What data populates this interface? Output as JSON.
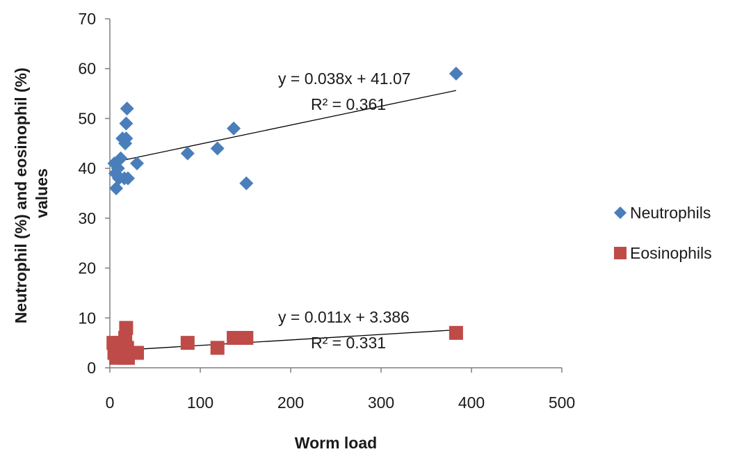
{
  "chart_data": {
    "type": "scatter",
    "title": "",
    "xlabel": "Worm load",
    "ylabel": "Neutrophil (%) and eosinophil (%) values",
    "xlim": [
      0,
      500
    ],
    "ylim": [
      0,
      70
    ],
    "xticks": [
      0,
      100,
      200,
      300,
      400,
      500
    ],
    "yticks": [
      0,
      10,
      20,
      30,
      40,
      50,
      60,
      70
    ],
    "grid": false,
    "legend_position": "right",
    "series": [
      {
        "name": "Neutrophils",
        "marker": "diamond",
        "color": "#4a7ebb",
        "points": [
          [
            5,
            41
          ],
          [
            6,
            39
          ],
          [
            7,
            36
          ],
          [
            9,
            40
          ],
          [
            10,
            38
          ],
          [
            12,
            42
          ],
          [
            14,
            46
          ],
          [
            16,
            38
          ],
          [
            17,
            45
          ],
          [
            18,
            49
          ],
          [
            18,
            46
          ],
          [
            19,
            52
          ],
          [
            20,
            38
          ],
          [
            30,
            41
          ],
          [
            86,
            43
          ],
          [
            119,
            44
          ],
          [
            137,
            48
          ],
          [
            151,
            37
          ],
          [
            383,
            59
          ]
        ],
        "trendline": {
          "slope": 0.038,
          "intercept": 41.07,
          "x_range": [
            5,
            383
          ],
          "equation": "y = 0.038x + 41.07",
          "r2": "R² = 0.361"
        }
      },
      {
        "name": "Eosinophils",
        "marker": "square",
        "color": "#be4b48",
        "points": [
          [
            4,
            5
          ],
          [
            5,
            3
          ],
          [
            6,
            4
          ],
          [
            7,
            2
          ],
          [
            9,
            3
          ],
          [
            10,
            5
          ],
          [
            12,
            4
          ],
          [
            14,
            3
          ],
          [
            16,
            2
          ],
          [
            17,
            6
          ],
          [
            18,
            8
          ],
          [
            19,
            4
          ],
          [
            20,
            2
          ],
          [
            30,
            3
          ],
          [
            86,
            5
          ],
          [
            119,
            4
          ],
          [
            137,
            6
          ],
          [
            151,
            6
          ],
          [
            383,
            7
          ]
        ],
        "trendline": {
          "slope": 0.011,
          "intercept": 3.386,
          "x_range": [
            5,
            383
          ],
          "equation": "y = 0.011x + 3.386",
          "r2": "R² = 0.331"
        }
      }
    ]
  }
}
